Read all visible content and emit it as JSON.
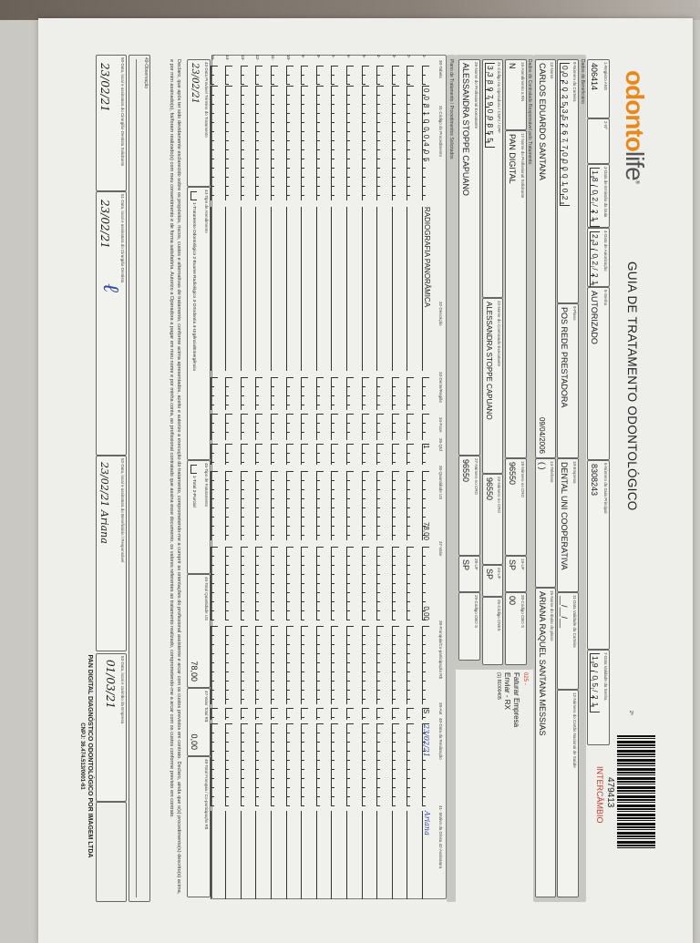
{
  "logo": {
    "text_brand": "odonto",
    "text_suffix": "life",
    "mark": "®"
  },
  "title": "GUIA DE TRATAMENTO ODONTOLÓGICO",
  "copy_mark": "2ª",
  "barcode": {
    "number": "479413",
    "label": "INTERCÂMBIO",
    "label_color": "#c0392b"
  },
  "header": {
    "ans": {
      "label": "1-Registro ANS",
      "value": "406414"
    },
    "num": {
      "label": "2-Nº",
      "value": ""
    },
    "emissao": {
      "label": "3-Data de Emissão da Guia",
      "value": "18/02/21"
    },
    "autorizacao": {
      "label": "4-Data de Autorização",
      "value": "23/02/21"
    },
    "senha": {
      "label": "5-Senha",
      "value": "AUTORIZADO"
    },
    "guia_principal": {
      "label": "6-Número da Guia Principal",
      "value": "8308243"
    },
    "validade_senha": {
      "label": "7-Data Validade da Senha",
      "value": "19/05/21"
    }
  },
  "beneficiario": {
    "section_label": "Dados do Beneficiário",
    "carteira": {
      "label": "8-Número da Carteira",
      "value": "0020253526770000102"
    },
    "plano": {
      "label": "9-Plano",
      "value": "POS REDE PRESTADORA"
    },
    "empresa": {
      "label": "10-Empresa",
      "value": "DENTAL UNI COOPERATIVA"
    },
    "validade_carteira": {
      "label": "11-Data Validade da Carteira",
      "value": "__/__/__"
    },
    "cns": {
      "label": "12-Número do Cartão Nacional de Saúde",
      "value": ""
    },
    "nome": {
      "label": "13-Nome",
      "value": "CARLOS EDUARDO SANTANA",
      "birth": "09/04/2006"
    },
    "telefone": {
      "label": "14-Telefone",
      "value": "(   )"
    },
    "titular": {
      "label": "15-Nome do titular do plano",
      "value": "ARIANA RAQUEL SANTANA MESSIAS"
    }
  },
  "contratado": {
    "section_label": "Dados do Contratado Responsável pelo Tratamento",
    "rn": {
      "label": "16-Atendimento a RN",
      "value": "N"
    },
    "solicitante": {
      "label": "17-Nome do Profissional Solicitante",
      "value": "PAN DIGITAL"
    },
    "cro1": {
      "label": "18-Número no CRO",
      "value": "96550"
    },
    "uf1": {
      "label": "19-UF",
      "value": "SP"
    },
    "cbo1": {
      "label": "20-Código CBO S",
      "value": "00"
    },
    "codigo": {
      "label": "21-Código na Operadora / CNPJ / CPF",
      "value": "33897909855"
    },
    "executante": {
      "label": "22-Nome do Contratado Executante",
      "value": "ALESSANDRA STOPPE CAPUANO"
    },
    "cro2": {
      "label": "23-Número no CRO",
      "value": "96550"
    },
    "uf2": {
      "label": "24-UF",
      "value": "SP"
    },
    "cnes": {
      "label": "25-Código CNES",
      "value": ""
    },
    "prof_exec": {
      "label": "26-Nome do Profissional Executante",
      "value": "ALESSANDRA STOPPE CAPUANO"
    },
    "cro3": {
      "label": "27-Número no CRO",
      "value": "96550"
    },
    "uf3": {
      "label": "28-UF",
      "value": "SP"
    },
    "cbo3": {
      "label": "29-Código CBO S",
      "value": ""
    },
    "notes": {
      "code": "025 -",
      "line1": "Faturar Empresa",
      "line2": "Enviar - RX",
      "line3": "(1) 81000405"
    }
  },
  "procedures": {
    "section_label": "Plano de Tratamento / Procedimentos Solicitados",
    "headers": [
      "30-Tabela",
      "31-Código do Procedimento",
      "32-Descrição",
      "33-Dente/Região",
      "34-Face",
      "35-Qtd",
      "36-Quantidade US",
      "37-Valor",
      "38-Franquia/Co-participação R$",
      "39-Aut",
      "40-Data da Realização",
      "41- Motivo da Glosa 42-Assinatura"
    ],
    "rows": [
      {
        "n": "1-",
        "tabela": "",
        "codigo": "0081000405",
        "descricao": "RADIOGRAFIA PANORÂMICA",
        "dente": "",
        "face": "",
        "qtd": "1",
        "us": "78,00",
        "valor": "0,00",
        "franquia": "",
        "aut": "S",
        "data": "23/02/21",
        "assinatura": "Ariana"
      },
      {
        "n": "2-"
      },
      {
        "n": "3-"
      },
      {
        "n": "4-"
      },
      {
        "n": "5-"
      },
      {
        "n": "6-"
      },
      {
        "n": "7-"
      },
      {
        "n": "8-"
      },
      {
        "n": "9-"
      },
      {
        "n": "10-"
      },
      {
        "n": "11-"
      },
      {
        "n": "12-"
      },
      {
        "n": "13-"
      },
      {
        "n": "14-"
      },
      {
        "n": "15-"
      }
    ]
  },
  "totals": {
    "termino": {
      "label": "43-Data Provável Término do Tratamento",
      "value": "23/02/21"
    },
    "tipo_atendimento": {
      "label": "44-Tipo de Atendimento",
      "value": "1-Tratamento Odontológico  2-Exame Radiológico  3-Ortodontia  4-Urgência/Emergência"
    },
    "tipo_faturamento": {
      "label": "45-Tipo de Faturamento",
      "value": "1-Total  2-Parcial"
    },
    "total_us": {
      "label": "46-Total Quantidade US",
      "value": "78,00"
    },
    "valor_total": {
      "label": "47-Valor Total R$",
      "value": "0,00"
    },
    "franquia_total": {
      "label": "48-Total Franquia / Co-participação R$",
      "value": ""
    }
  },
  "declaration": "Declaro, que após ter sido devidamente esclarecido sobre os propósitos, riscos, custos e alternativas de tratamento, conforme acima apresentados, aceito e autorizo a execução do tratamento, comprometendo-me a cumprir as orientações do profissional assistente e arcar com os custos previstos em contrato. Declaro, ainda que o(s) procedimento(s) descrito(s) acima, e por mim assinado(s), foi/foram realizado(s) com meu consentimento e de forma satisfatória. Autorizo a Operadora a pagar em meu nome e por minha conta, ao profissional contratado que assina esse documento, os valores referentes ao tratamento realizado, comprometendo-me a arcar com os custos conforme previsto em contrato.",
  "observacao": {
    "label": "49-Observação",
    "value": ""
  },
  "signatures": {
    "s50": {
      "label": "50-Data, local e assinatura do Cirurgião-Dentista Solicitante",
      "value": "23/02/21"
    },
    "s51": {
      "label": "51-Data, local e assinatura do Cirurgião-Dentista",
      "value": "23/02/21"
    },
    "s52": {
      "label": "52-Data, local e assinatura do Beneficiário / Responsável",
      "value": "23/02/21 Ariana"
    },
    "s53": {
      "label": "53-Data, local e carimbo da Empresa",
      "value": "01/03/21"
    }
  },
  "footer": {
    "company": "PAN DIGITAL DIAGNÓSTICO ODONTOLÓGICO POR IMAGEM LTDA",
    "cnpj": "CNPJ: 36.474.513/0001-61"
  },
  "colors": {
    "brand_orange": "#e8891e",
    "ink_blue": "#3145a3",
    "paper": "#eeeeea",
    "band_gray": "#c8c8c3"
  }
}
